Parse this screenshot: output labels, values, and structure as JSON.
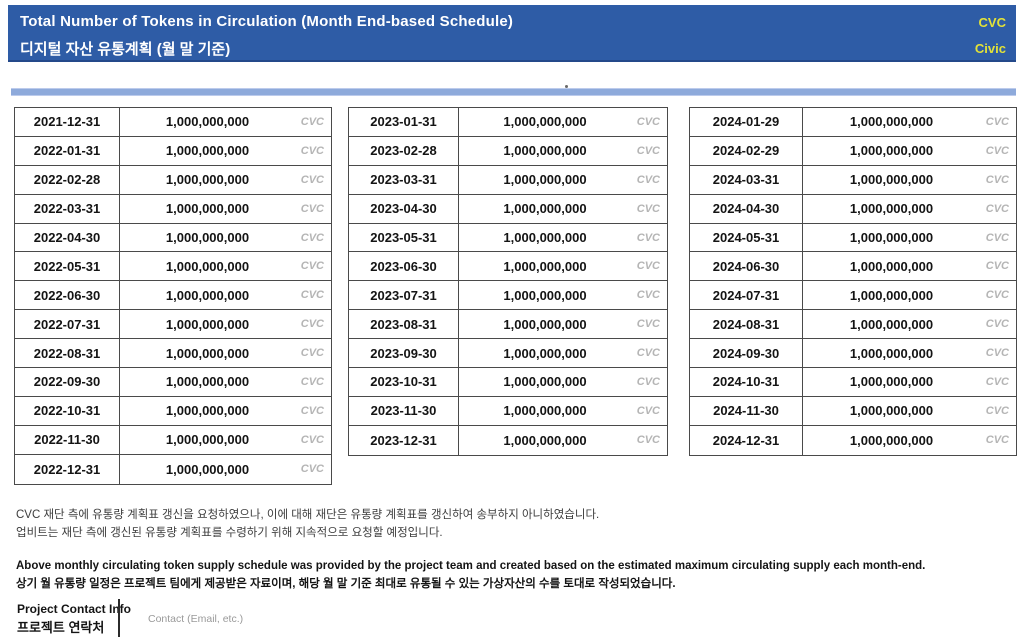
{
  "header": {
    "title_en": "Total Number of Tokens in Circulation (Month End-based Schedule)",
    "title_ko": "디지털 자산 유통계획 (월 말 기준)",
    "ticker": "CVC",
    "token_name": "Civic",
    "colors": {
      "header_bg": "#2E5CA6",
      "accent_text": "#E3E238",
      "divider_bar": "#8EAADB",
      "table_border": "#4A4A4A",
      "unit_text": "#B5B5B5"
    }
  },
  "tables": [
    {
      "rows": [
        {
          "date": "2021-12-31",
          "value": "1,000,000,000",
          "unit": "CVC"
        },
        {
          "date": "2022-01-31",
          "value": "1,000,000,000",
          "unit": "CVC"
        },
        {
          "date": "2022-02-28",
          "value": "1,000,000,000",
          "unit": "CVC"
        },
        {
          "date": "2022-03-31",
          "value": "1,000,000,000",
          "unit": "CVC"
        },
        {
          "date": "2022-04-30",
          "value": "1,000,000,000",
          "unit": "CVC"
        },
        {
          "date": "2022-05-31",
          "value": "1,000,000,000",
          "unit": "CVC"
        },
        {
          "date": "2022-06-30",
          "value": "1,000,000,000",
          "unit": "CVC"
        },
        {
          "date": "2022-07-31",
          "value": "1,000,000,000",
          "unit": "CVC"
        },
        {
          "date": "2022-08-31",
          "value": "1,000,000,000",
          "unit": "CVC"
        },
        {
          "date": "2022-09-30",
          "value": "1,000,000,000",
          "unit": "CVC"
        },
        {
          "date": "2022-10-31",
          "value": "1,000,000,000",
          "unit": "CVC"
        },
        {
          "date": "2022-11-30",
          "value": "1,000,000,000",
          "unit": "CVC"
        },
        {
          "date": "2022-12-31",
          "value": "1,000,000,000",
          "unit": "CVC"
        }
      ]
    },
    {
      "rows": [
        {
          "date": "2023-01-31",
          "value": "1,000,000,000",
          "unit": "CVC"
        },
        {
          "date": "2023-02-28",
          "value": "1,000,000,000",
          "unit": "CVC"
        },
        {
          "date": "2023-03-31",
          "value": "1,000,000,000",
          "unit": "CVC"
        },
        {
          "date": "2023-04-30",
          "value": "1,000,000,000",
          "unit": "CVC"
        },
        {
          "date": "2023-05-31",
          "value": "1,000,000,000",
          "unit": "CVC"
        },
        {
          "date": "2023-06-30",
          "value": "1,000,000,000",
          "unit": "CVC"
        },
        {
          "date": "2023-07-31",
          "value": "1,000,000,000",
          "unit": "CVC"
        },
        {
          "date": "2023-08-31",
          "value": "1,000,000,000",
          "unit": "CVC"
        },
        {
          "date": "2023-09-30",
          "value": "1,000,000,000",
          "unit": "CVC"
        },
        {
          "date": "2023-10-31",
          "value": "1,000,000,000",
          "unit": "CVC"
        },
        {
          "date": "2023-11-30",
          "value": "1,000,000,000",
          "unit": "CVC"
        },
        {
          "date": "2023-12-31",
          "value": "1,000,000,000",
          "unit": "CVC"
        }
      ]
    },
    {
      "rows": [
        {
          "date": "2024-01-29",
          "value": "1,000,000,000",
          "unit": "CVC"
        },
        {
          "date": "2024-02-29",
          "value": "1,000,000,000",
          "unit": "CVC"
        },
        {
          "date": "2024-03-31",
          "value": "1,000,000,000",
          "unit": "CVC"
        },
        {
          "date": "2024-04-30",
          "value": "1,000,000,000",
          "unit": "CVC"
        },
        {
          "date": "2024-05-31",
          "value": "1,000,000,000",
          "unit": "CVC"
        },
        {
          "date": "2024-06-30",
          "value": "1,000,000,000",
          "unit": "CVC"
        },
        {
          "date": "2024-07-31",
          "value": "1,000,000,000",
          "unit": "CVC"
        },
        {
          "date": "2024-08-31",
          "value": "1,000,000,000",
          "unit": "CVC"
        },
        {
          "date": "2024-09-30",
          "value": "1,000,000,000",
          "unit": "CVC"
        },
        {
          "date": "2024-10-31",
          "value": "1,000,000,000",
          "unit": "CVC"
        },
        {
          "date": "2024-11-30",
          "value": "1,000,000,000",
          "unit": "CVC"
        },
        {
          "date": "2024-12-31",
          "value": "1,000,000,000",
          "unit": "CVC"
        }
      ]
    }
  ],
  "notes": {
    "request_ko_line1": "CVC 재단 측에 유통량 계획표 갱신을 요청하였으나, 이에 대해 재단은 유통량 계획표를 갱신하여 송부하지 아니하였습니다.",
    "request_ko_line2": "업비트는 재단 측에 갱신된 유통량 계획표를 수령하기 위해 지속적으로 요청할 예정입니다.",
    "schedule_en": "Above monthly circulating token supply schedule was provided by the project team and created based on the estimated maximum circulating supply each month-end.",
    "schedule_ko": "상기 월 유통량 일정은 프로젝트 팀에게 제공받은 자료이며, 해당 월 말 기준 최대로 유통될 수 있는 가상자산의 수를 토대로 작성되었습니다."
  },
  "contact": {
    "label_en": "Project Contact Info",
    "label_ko": "프로젝트 연락처",
    "value_placeholder": "Contact (Email, etc.)"
  }
}
